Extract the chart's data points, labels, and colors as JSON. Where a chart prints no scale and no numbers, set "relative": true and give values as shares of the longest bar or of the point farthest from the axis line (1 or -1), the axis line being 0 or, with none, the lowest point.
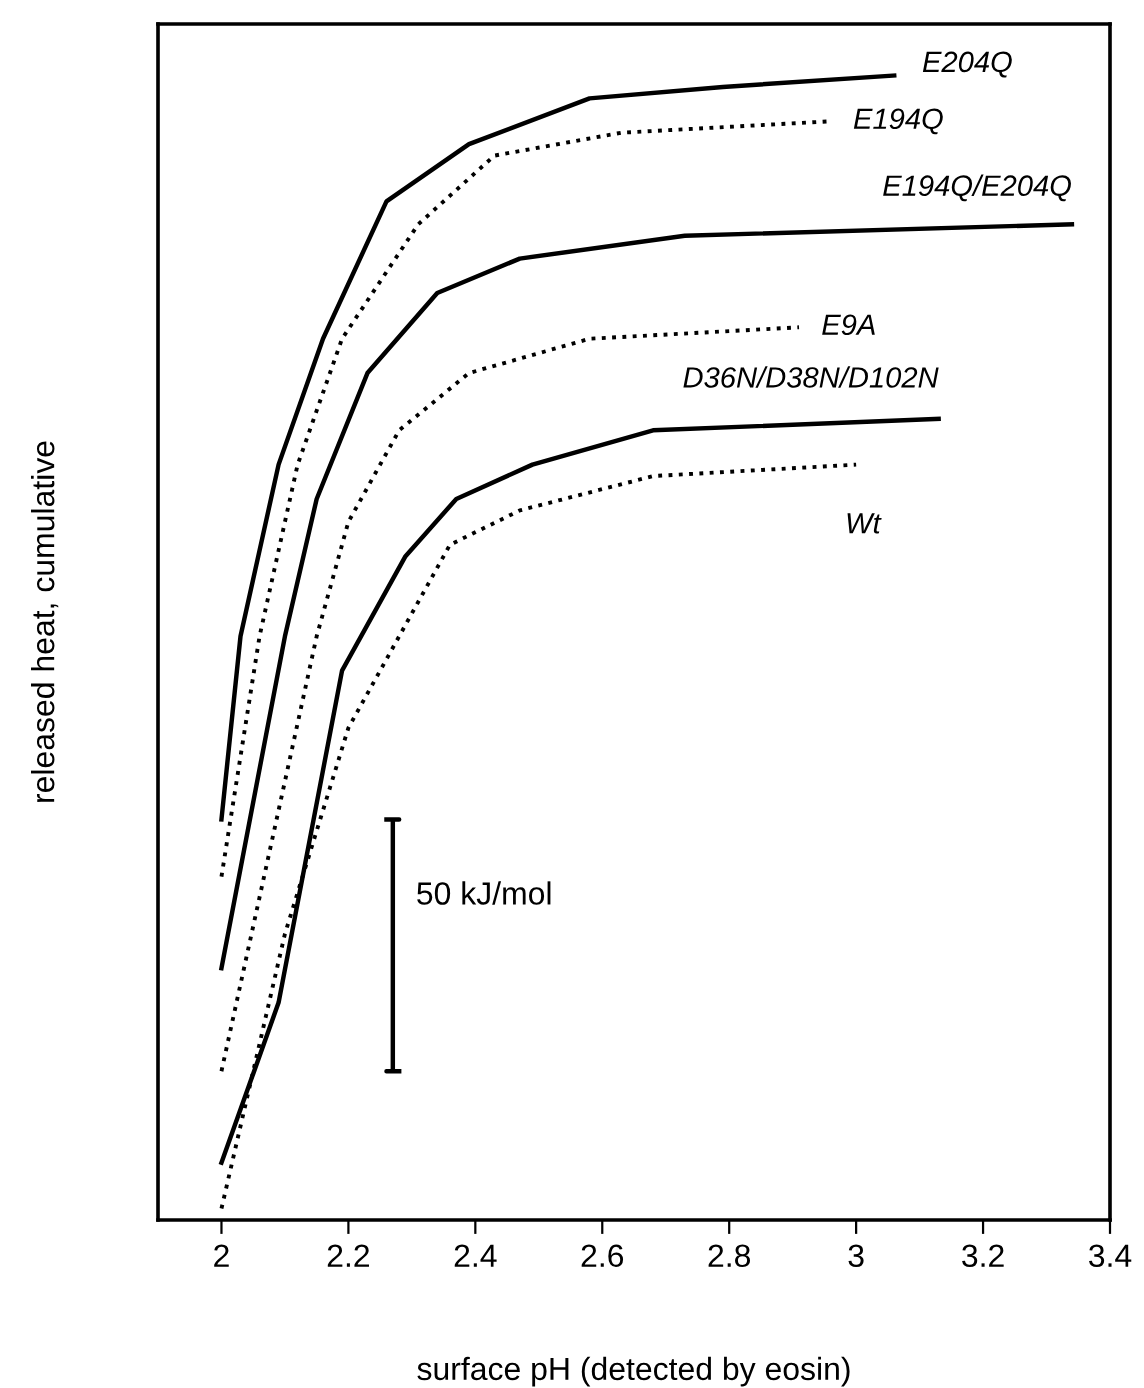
{
  "chart_data": {
    "type": "line",
    "relative": true,
    "xlabel": "surface pH (detected by eosin)",
    "ylabel": "released heat, cumulative",
    "xlim": [
      1.9,
      3.4
    ],
    "xticks": [
      2,
      2.2,
      2.4,
      2.6,
      2.8,
      3,
      3.2,
      3.4
    ],
    "grid": false,
    "legend": false,
    "marker": "none",
    "series": [
      {
        "name": "E204Q",
        "color": "#000000",
        "line_style": "solid",
        "x": [
          2.0,
          2.03,
          2.09,
          2.16,
          2.26,
          2.39,
          2.58,
          2.79,
          3.06
        ],
        "values": [
          0.35,
          0.51,
          0.66,
          0.77,
          0.89,
          0.94,
          0.98,
          0.99,
          1.0
        ]
      },
      {
        "name": "E194Q",
        "color": "#000000",
        "line_style": "dotted",
        "x": [
          2.0,
          2.06,
          2.12,
          2.19,
          2.31,
          2.43,
          2.63,
          2.96
        ],
        "values": [
          0.3,
          0.51,
          0.66,
          0.77,
          0.87,
          0.93,
          0.95,
          0.96
        ]
      },
      {
        "name": "E194Q/E204Q",
        "color": "#000000",
        "line_style": "solid",
        "x": [
          2.0,
          2.1,
          2.15,
          2.23,
          2.34,
          2.47,
          2.73,
          3.34
        ],
        "values": [
          0.22,
          0.51,
          0.63,
          0.74,
          0.81,
          0.84,
          0.86,
          0.87
        ]
      },
      {
        "name": "E9A",
        "color": "#000000",
        "line_style": "dotted",
        "x": [
          2.0,
          2.15,
          2.2,
          2.28,
          2.39,
          2.58,
          2.91
        ],
        "values": [
          0.13,
          0.51,
          0.61,
          0.69,
          0.74,
          0.77,
          0.78
        ]
      },
      {
        "name": "D36N/D38N/D102N",
        "color": "#000000",
        "line_style": "solid",
        "x": [
          2.0,
          2.09,
          2.19,
          2.29,
          2.37,
          2.49,
          2.68,
          3.13
        ],
        "values": [
          0.05,
          0.19,
          0.48,
          0.58,
          0.63,
          0.66,
          0.69,
          0.7
        ]
      },
      {
        "name": "Wt",
        "color": "#000000",
        "line_style": "dotted",
        "x": [
          2.0,
          2.1,
          2.2,
          2.31,
          2.36,
          2.47,
          2.68,
          3.0
        ],
        "values": [
          0.01,
          0.25,
          0.43,
          0.54,
          0.59,
          0.62,
          0.65,
          0.66
        ]
      },
      {
        "name": "50 kJ/mol",
        "color": "#000000",
        "line_style": "solid",
        "x": [
          2.26,
          2.28,
          2.27,
          2.27,
          2.26,
          2.28
        ],
        "values": [
          0.35,
          0.35,
          0.35,
          0.13,
          0.13,
          0.13
        ]
      }
    ]
  }
}
